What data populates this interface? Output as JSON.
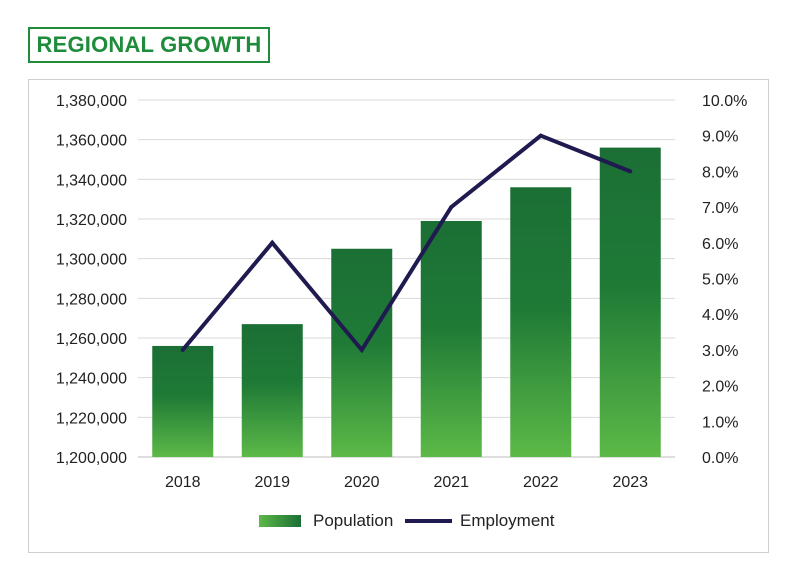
{
  "header": {
    "title": "REGIONAL GROWTH"
  },
  "colors": {
    "accent": "#1e8c3a",
    "bar_top": "#1b6f35",
    "bar_bottom": "#5cb947",
    "line": "#1f1a4f",
    "grid": "#d9d9d9"
  },
  "chart_data": {
    "type": "bar",
    "title": "REGIONAL GROWTH",
    "categories": [
      "2018",
      "2019",
      "2020",
      "2021",
      "2022",
      "2023"
    ],
    "series": [
      {
        "name": "Population",
        "type": "bar",
        "axis": "left",
        "values": [
          1256000,
          1267000,
          1305000,
          1319000,
          1336000,
          1356000
        ]
      },
      {
        "name": "Employment",
        "type": "line",
        "axis": "right",
        "values": [
          3.0,
          6.0,
          3.0,
          7.0,
          9.0,
          8.0
        ]
      }
    ],
    "y_left": {
      "min": 1200000,
      "max": 1380000,
      "ticks": [
        "1,200,000",
        "1,220,000",
        "1,240,000",
        "1,260,000",
        "1,280,000",
        "1,300,000",
        "1,320,000",
        "1,340,000",
        "1,360,000",
        "1,380,000"
      ]
    },
    "y_right": {
      "min": 0,
      "max": 10,
      "ticks": [
        "0.0%",
        "1.0%",
        "2.0%",
        "3.0%",
        "4.0%",
        "5.0%",
        "6.0%",
        "7.0%",
        "8.0%",
        "9.0%",
        "10.0%"
      ]
    },
    "legend": {
      "position": "bottom",
      "items": [
        "Population",
        "Employment"
      ]
    },
    "grid": true
  }
}
